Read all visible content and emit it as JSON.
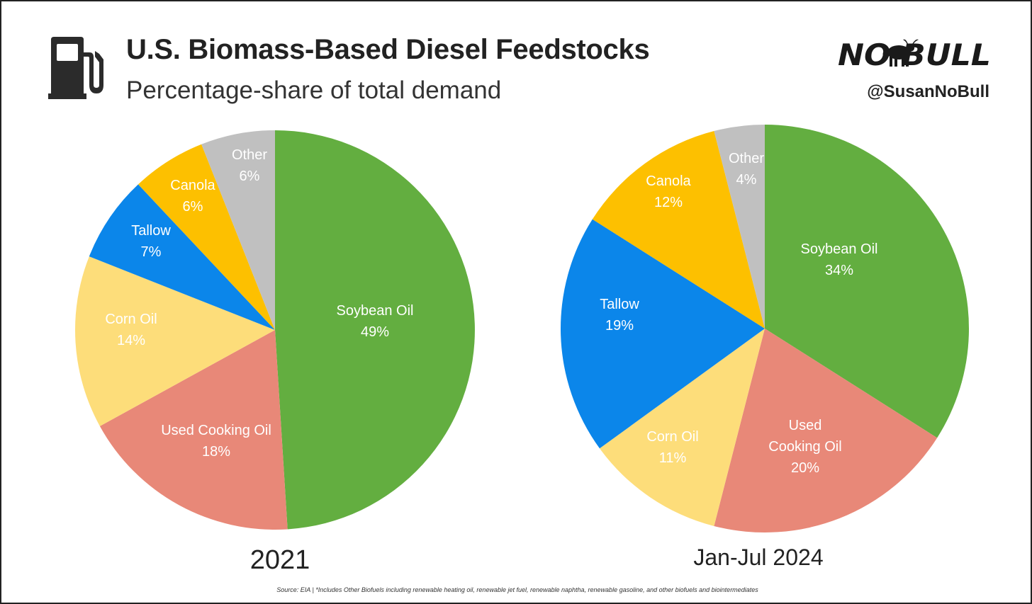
{
  "header": {
    "title": "U.S. Biomass-Based Diesel Feedstocks",
    "subtitle": "Percentage-share of total demand"
  },
  "brand": {
    "logo_text": "NO BULL",
    "handle": "@SusanNoBull"
  },
  "icons": {
    "header_icon": "fuel-pump-icon",
    "brand_icon": "bull-icon"
  },
  "chart_data": [
    {
      "type": "pie",
      "title": "2021",
      "slices": [
        {
          "label": "Soybean Oil",
          "value": 49,
          "value_label": "49%",
          "color": "#63AE40"
        },
        {
          "label": "Used Cooking Oil",
          "value": 18,
          "value_label": "18%",
          "color": "#E88878"
        },
        {
          "label": "Corn Oil",
          "value": 14,
          "value_label": "14%",
          "color": "#FDDD7A"
        },
        {
          "label": "Tallow",
          "value": 7,
          "value_label": "7%",
          "color": "#0B86EA"
        },
        {
          "label": "Canola",
          "value": 6,
          "value_label": "6%",
          "color": "#FDC000"
        },
        {
          "label": "Other",
          "value": 6,
          "value_label": "6%",
          "color": "#C0C0C0"
        }
      ]
    },
    {
      "type": "pie",
      "title": "Jan-Jul 2024",
      "slices": [
        {
          "label": "Soybean Oil",
          "value": 34,
          "value_label": "34%",
          "color": "#63AE40"
        },
        {
          "label": "Used Cooking Oil",
          "value": 20,
          "value_label": "20%",
          "color": "#E88878"
        },
        {
          "label": "Corn Oil",
          "value": 11,
          "value_label": "11%",
          "color": "#FDDD7A"
        },
        {
          "label": "Tallow",
          "value": 19,
          "value_label": "19%",
          "color": "#0B86EA"
        },
        {
          "label": "Canola",
          "value": 12,
          "value_label": "12%",
          "color": "#FDC000"
        },
        {
          "label": "Other",
          "value": 4,
          "value_label": "4%",
          "color": "#C0C0C0"
        }
      ]
    }
  ],
  "footnote": "Source: EIA | *Includes Other Biofuels including renewable heating oil, renewable jet fuel, renewable naphtha, renewable gasoline, and other biofuels and biointermediates"
}
